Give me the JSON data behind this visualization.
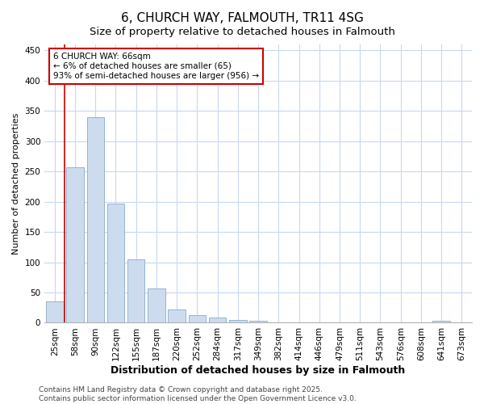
{
  "title": "6, CHURCH WAY, FALMOUTH, TR11 4SG",
  "subtitle": "Size of property relative to detached houses in Falmouth",
  "xlabel": "Distribution of detached houses by size in Falmouth",
  "ylabel": "Number of detached properties",
  "categories": [
    "25sqm",
    "58sqm",
    "90sqm",
    "122sqm",
    "155sqm",
    "187sqm",
    "220sqm",
    "252sqm",
    "284sqm",
    "317sqm",
    "349sqm",
    "382sqm",
    "414sqm",
    "446sqm",
    "479sqm",
    "511sqm",
    "543sqm",
    "576sqm",
    "608sqm",
    "641sqm",
    "673sqm"
  ],
  "values": [
    35,
    257,
    340,
    197,
    105,
    57,
    22,
    12,
    8,
    5,
    3,
    1,
    1,
    0,
    1,
    0,
    0,
    0,
    0,
    3,
    0
  ],
  "bar_color": "#ccdcee",
  "bar_edge_color": "#88aac8",
  "vline_x": 0.5,
  "vline_color": "#cc0000",
  "annotation_text": "6 CHURCH WAY: 66sqm\n← 6% of detached houses are smaller (65)\n93% of semi-detached houses are larger (956) →",
  "annotation_box_facecolor": "#ffffff",
  "annotation_box_edgecolor": "#cc0000",
  "ylim": [
    0,
    460
  ],
  "yticks": [
    0,
    50,
    100,
    150,
    200,
    250,
    300,
    350,
    400,
    450
  ],
  "footer_text": "Contains HM Land Registry data © Crown copyright and database right 2025.\nContains public sector information licensed under the Open Government Licence v3.0.",
  "title_fontsize": 11,
  "subtitle_fontsize": 9.5,
  "xlabel_fontsize": 9,
  "ylabel_fontsize": 8,
  "tick_fontsize": 7.5,
  "annot_fontsize": 7.5,
  "footer_fontsize": 6.5,
  "background_color": "#ffffff",
  "grid_color": "#c8d8f0"
}
